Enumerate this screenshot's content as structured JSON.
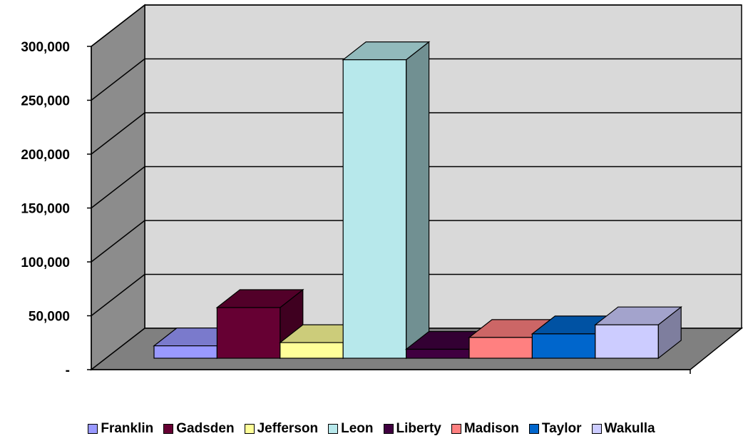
{
  "chart_data": {
    "type": "bar",
    "subtype": "3d-column",
    "title": "",
    "xlabel": "",
    "ylabel": "",
    "categories": [
      "Franklin",
      "Gadsden",
      "Jefferson",
      "Leon",
      "Liberty",
      "Madison",
      "Taylor",
      "Wakulla"
    ],
    "values": [
      11500,
      47000,
      14500,
      277000,
      8300,
      19300,
      22600,
      31000
    ],
    "colors": [
      "#9999ff",
      "#660033",
      "#ffff99",
      "#b7e8eb",
      "#400040",
      "#ff8080",
      "#0066cc",
      "#ccccff"
    ],
    "ylim": [
      0,
      300000
    ],
    "yticks": [
      0,
      50000,
      100000,
      150000,
      200000,
      250000,
      300000
    ],
    "ytick_labels": [
      "-",
      "50,000",
      "100,000",
      "150,000",
      "200,000",
      "250,000",
      "300,000"
    ],
    "grid": true,
    "legend_position": "bottom",
    "wall_color": "#d9d9d9",
    "side_wall_color": "#8c8c8c",
    "floor_color": "#808080"
  }
}
